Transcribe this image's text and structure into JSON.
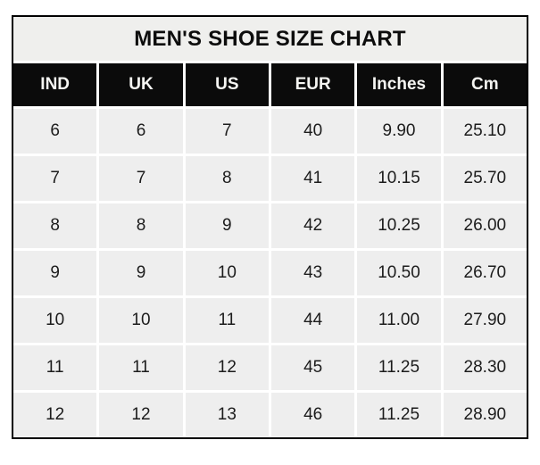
{
  "title": "MEN'S SHOE SIZE CHART",
  "colors": {
    "header_bg": "#0b0b0b",
    "header_text": "#f5f5f2",
    "cell_bg": "#eeeeee",
    "cell_text": "#1c1c1c",
    "title_bg": "#efefed",
    "title_text": "#0d0d0d",
    "border": "#000000",
    "gap": "#ffffff"
  },
  "chart_data": {
    "type": "table",
    "title": "MEN'S SHOE SIZE CHART",
    "columns": [
      "IND",
      "UK",
      "US",
      "EUR",
      "Inches",
      "Cm"
    ],
    "rows": [
      [
        "6",
        "6",
        "7",
        "40",
        "9.90",
        "25.10"
      ],
      [
        "7",
        "7",
        "8",
        "41",
        "10.15",
        "25.70"
      ],
      [
        "8",
        "8",
        "9",
        "42",
        "10.25",
        "26.00"
      ],
      [
        "9",
        "9",
        "10",
        "43",
        "10.50",
        "26.70"
      ],
      [
        "10",
        "10",
        "11",
        "44",
        "11.00",
        "27.90"
      ],
      [
        "11",
        "11",
        "12",
        "45",
        "11.25",
        "28.30"
      ],
      [
        "12",
        "12",
        "13",
        "46",
        "11.25",
        "28.90"
      ]
    ],
    "layout": {
      "grid": "white 3px gaps between cells",
      "outer_border": "2px solid black",
      "legend_position": "none"
    }
  }
}
